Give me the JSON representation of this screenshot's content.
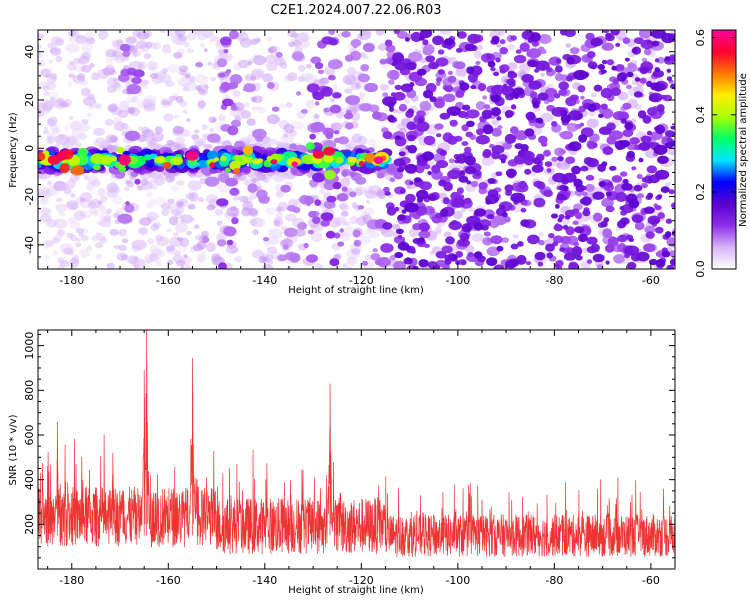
{
  "title": "C2E1.2024.007.22.06.R03",
  "chart_data": [
    {
      "type": "heatmap",
      "xlabel": "Height of straight line (km)",
      "ylabel": "Frequency (Hz)",
      "xlim": [
        -187,
        -55
      ],
      "ylim": [
        -50,
        49
      ],
      "xticks": [
        -180,
        -160,
        -140,
        -120,
        -100,
        -80,
        -60
      ],
      "yticks": [
        -40,
        -20,
        0,
        20,
        40
      ],
      "colorbar": {
        "label": "Normalized spectral amplitude",
        "range": [
          0.0,
          0.62
        ],
        "ticks": [
          0.0,
          0.2,
          0.4,
          0.6
        ],
        "colormap": [
          "#ffffff",
          "#d8b4f8",
          "#8f2fe8",
          "#5a00d0",
          "#0000ff",
          "#00e5ff",
          "#00ff66",
          "#aaff00",
          "#ffee00",
          "#ff7700",
          "#ff0030",
          "#ff00a0"
        ]
      },
      "ridge": {
        "x_start": -187,
        "x_end": -115,
        "y_center": -5,
        "peak_value": 0.62
      },
      "grid": false
    },
    {
      "type": "line",
      "xlabel": "Height of straight line (km)",
      "ylabel": "SNR (10 * v/v)",
      "xlim": [
        -187,
        -55
      ],
      "ylim": [
        0,
        1070
      ],
      "xticks": [
        -180,
        -160,
        -140,
        -120,
        -100,
        -80,
        -60
      ],
      "yticks": [
        200,
        400,
        600,
        800,
        1000
      ],
      "color": "#ee3333",
      "peaks": [
        {
          "x": -164.5,
          "y": 1070
        },
        {
          "x": -165.0,
          "y": 890
        },
        {
          "x": -155.0,
          "y": 945
        },
        {
          "x": -126.5,
          "y": 830
        },
        {
          "x": -183.0,
          "y": 660
        },
        {
          "x": -171.5,
          "y": 520
        }
      ],
      "baseline_segments": [
        {
          "x_start": -187,
          "x_end": -150,
          "mean": 220,
          "noise": 170
        },
        {
          "x_start": -150,
          "x_end": -115,
          "mean": 180,
          "noise": 160
        },
        {
          "x_start": -115,
          "x_end": -55,
          "mean": 140,
          "noise": 120
        }
      ],
      "grid": false
    }
  ]
}
